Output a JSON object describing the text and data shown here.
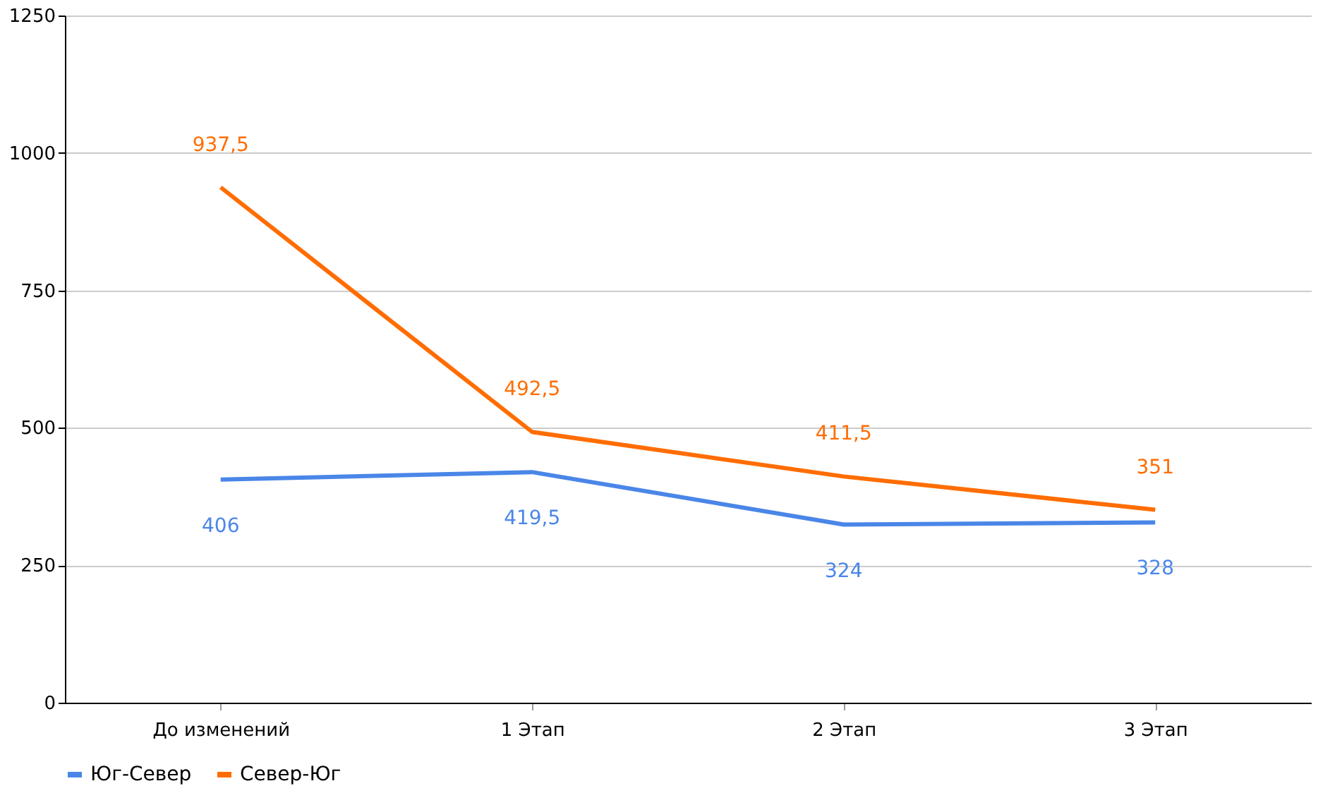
{
  "chart_data": {
    "type": "line",
    "categories": [
      "До изменений",
      "1 Этап",
      "2 Этап",
      "3 Этап"
    ],
    "series": [
      {
        "name": "Юг-Север",
        "color": "#4a86e8",
        "values": [
          406,
          419.5,
          324,
          328
        ],
        "value_labels": [
          "406",
          "419,5",
          "324",
          "328"
        ]
      },
      {
        "name": "Север-Юг",
        "color": "#ff6d01",
        "values": [
          937.5,
          492.5,
          411.5,
          351
        ],
        "value_labels": [
          "937,5",
          "492,5",
          "411,5",
          "351"
        ]
      }
    ],
    "ylim": [
      0,
      1250
    ],
    "yticks": [
      0,
      250,
      500,
      750,
      1000,
      1250
    ],
    "grid": "y",
    "legend": "bottom",
    "marker": "none",
    "line_style": "solid"
  }
}
